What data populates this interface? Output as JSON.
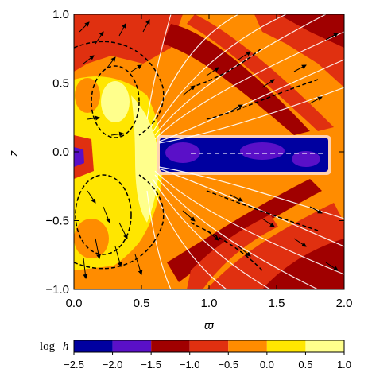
{
  "chart_data": {
    "type": "heatmap",
    "xlabel": "ϖ",
    "ylabel": "z",
    "xlim": [
      0.0,
      2.0
    ],
    "ylim": [
      -1.0,
      1.0
    ],
    "x_ticks": [
      "0.0",
      "0.5",
      "1.0",
      "1.5",
      "2.0"
    ],
    "x_tick_values": [
      0.0,
      0.5,
      1.0,
      1.5,
      2.0
    ],
    "y_ticks": [
      "−1.0",
      "−0.5",
      "0.0",
      "0.5",
      "1.0"
    ],
    "y_tick_values": [
      -1.0,
      -0.5,
      0.0,
      0.5,
      1.0
    ],
    "colorbar": {
      "label_prefix": "log",
      "label_var": "h",
      "ticks": [
        "−2.5",
        "−2.0",
        "−1.5",
        "−1.0",
        "−0.5",
        "0.0",
        "0.5",
        "1.0"
      ],
      "tick_values": [
        -2.5,
        -2.0,
        -1.5,
        -1.0,
        -0.5,
        0.0,
        0.5,
        1.0
      ],
      "colors": [
        "#0000a0",
        "#5a10c8",
        "#a00000",
        "#e03010",
        "#ff8c00",
        "#ffe600",
        "#ffff8c"
      ]
    },
    "disk_region": {
      "x": [
        0.6,
        1.85
      ],
      "z": [
        -0.1,
        0.1
      ],
      "level": -2.5
    },
    "field_lines": "white",
    "vectors": "black arrows",
    "negative_contours": "dashed black"
  }
}
